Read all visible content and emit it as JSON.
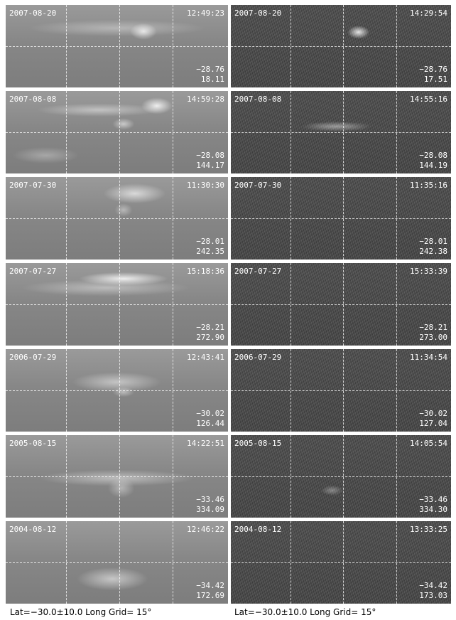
{
  "captions": [
    "Lat=−30.0±10.0 Long Grid= 15°",
    "Lat=−30.0±10.0 Long Grid= 15°"
  ],
  "rows": [
    {
      "left": {
        "date": "2007-08-20",
        "time": "12:49:23",
        "lat": "−28.76",
        "lon": "18.11",
        "kind": "raw"
      },
      "right": {
        "date": "2007-08-20",
        "time": "14:29:54",
        "lat": "−28.76",
        "lon": "17.51",
        "kind": "noisy"
      }
    },
    {
      "left": {
        "date": "2007-08-08",
        "time": "14:59:28",
        "lat": "−28.08",
        "lon": "144.17",
        "kind": "raw"
      },
      "right": {
        "date": "2007-08-08",
        "time": "14:55:16",
        "lat": "−28.08",
        "lon": "144.19",
        "kind": "noisy"
      }
    },
    {
      "left": {
        "date": "2007-07-30",
        "time": "11:30:30",
        "lat": "−28.01",
        "lon": "242.35",
        "kind": "raw"
      },
      "right": {
        "date": "2007-07-30",
        "time": "11:35:16",
        "lat": "−28.01",
        "lon": "242.38",
        "kind": "noisy"
      }
    },
    {
      "left": {
        "date": "2007-07-27",
        "time": "15:18:36",
        "lat": "−28.21",
        "lon": "272.90",
        "kind": "raw"
      },
      "right": {
        "date": "2007-07-27",
        "time": "15:33:39",
        "lat": "−28.21",
        "lon": "273.00",
        "kind": "noisy"
      }
    },
    {
      "left": {
        "date": "2006-07-29",
        "time": "12:43:41",
        "lat": "−30.02",
        "lon": "126.44",
        "kind": "raw"
      },
      "right": {
        "date": "2006-07-29",
        "time": "11:34:54",
        "lat": "−30.02",
        "lon": "127.04",
        "kind": "noisy"
      }
    },
    {
      "left": {
        "date": "2005-08-15",
        "time": "14:22:51",
        "lat": "−33.46",
        "lon": "334.09",
        "kind": "raw"
      },
      "right": {
        "date": "2005-08-15",
        "time": "14:05:54",
        "lat": "−33.46",
        "lon": "334.30",
        "kind": "noisy"
      }
    },
    {
      "left": {
        "date": "2004-08-12",
        "time": "12:46:22",
        "lat": "−34.42",
        "lon": "172.69",
        "kind": "raw"
      },
      "right": {
        "date": "2004-08-12",
        "time": "13:33:25",
        "lat": "−34.42",
        "lon": "173.03",
        "kind": "noisy"
      }
    }
  ]
}
